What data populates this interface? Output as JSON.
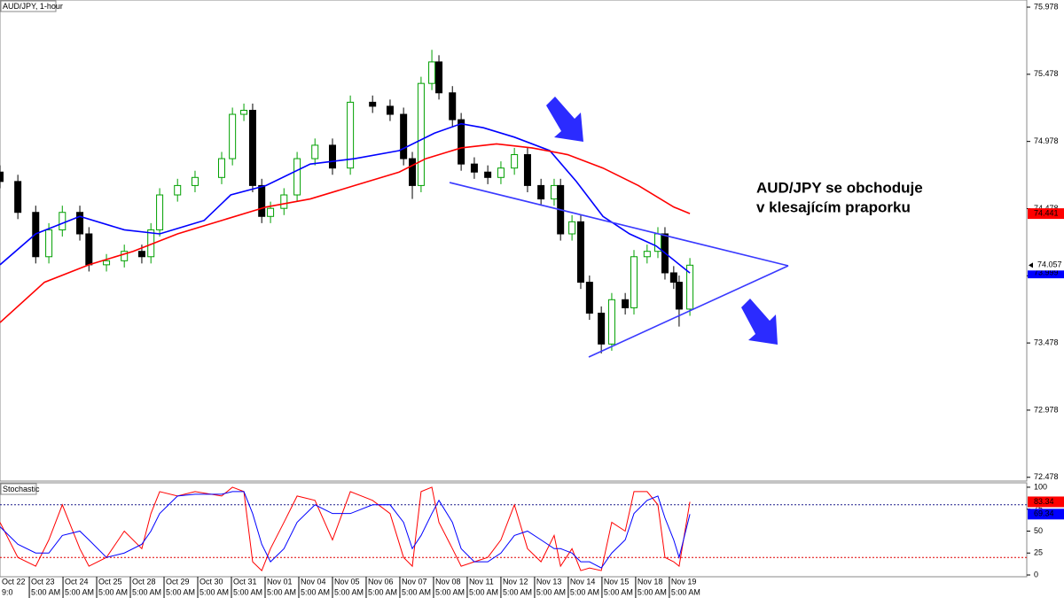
{
  "chart_data": [
    {
      "type": "candlestick",
      "title": "AUD/JPY, 1-hour",
      "x": [
        -0.32,
        0.21,
        0.74,
        1.13,
        1.53,
        2.05,
        2.32,
        2.84,
        3.37,
        3.89,
        4.16,
        4.42,
        4.95,
        5.47,
        6.26,
        6.58,
        6.92,
        7.18,
        7.45,
        7.71,
        8.11,
        8.5,
        9.03,
        9.55,
        10.08,
        10.74,
        11.26,
        11.66,
        11.92,
        12.18,
        12.5,
        12.71,
        13.11,
        13.37,
        13.76,
        14.16,
        14.55,
        14.95,
        15.34,
        15.74,
        16.13,
        16.32,
        16.66,
        16.92,
        17.18,
        17.53,
        17.84,
        18.24,
        18.5,
        18.89,
        19.21,
        19.42,
        19.68,
        19.84,
        20.16
      ],
      "open": [
        74.75,
        74.68,
        74.45,
        74.12,
        74.32,
        74.45,
        74.29,
        74.06,
        74.09,
        74.16,
        74.12,
        74.32,
        74.58,
        74.65,
        74.71,
        74.85,
        75.18,
        75.21,
        74.65,
        74.42,
        74.48,
        74.58,
        74.85,
        74.95,
        74.78,
        75.27,
        75.24,
        75.18,
        74.85,
        74.65,
        75.41,
        75.57,
        75.34,
        75.14,
        74.81,
        74.75,
        74.71,
        74.78,
        74.88,
        74.65,
        74.55,
        74.65,
        74.29,
        74.38,
        73.93,
        73.7,
        73.47,
        73.8,
        73.74,
        74.12,
        74.16,
        74.29,
        74.0,
        73.93,
        73.73
      ],
      "high": [
        74.8,
        74.73,
        74.5,
        74.37,
        74.5,
        74.5,
        74.34,
        74.14,
        74.21,
        74.21,
        74.37,
        74.63,
        74.7,
        74.76,
        74.9,
        75.23,
        75.26,
        75.26,
        74.7,
        74.53,
        74.63,
        74.9,
        75.0,
        75.0,
        75.32,
        75.32,
        75.29,
        75.23,
        74.9,
        75.46,
        75.66,
        75.62,
        75.39,
        75.19,
        74.86,
        74.8,
        74.83,
        74.93,
        74.93,
        74.7,
        74.7,
        74.7,
        74.43,
        74.43,
        73.98,
        73.75,
        73.85,
        73.85,
        74.17,
        74.21,
        74.34,
        74.34,
        74.05,
        73.98,
        74.11
      ],
      "low": [
        74.63,
        74.4,
        74.07,
        74.07,
        74.27,
        74.24,
        74.01,
        74.01,
        74.04,
        74.07,
        74.07,
        74.27,
        74.53,
        74.6,
        74.66,
        74.8,
        75.13,
        74.6,
        74.37,
        74.37,
        74.43,
        74.53,
        74.8,
        74.73,
        74.73,
        75.19,
        75.13,
        74.8,
        74.55,
        74.6,
        75.36,
        75.29,
        75.09,
        74.76,
        74.7,
        74.66,
        74.66,
        74.73,
        74.6,
        74.5,
        74.5,
        74.24,
        74.24,
        73.88,
        73.65,
        73.4,
        73.42,
        73.69,
        73.69,
        74.07,
        74.11,
        73.95,
        73.88,
        73.6,
        73.68
      ],
      "close": [
        74.68,
        74.45,
        74.12,
        74.32,
        74.45,
        74.29,
        74.06,
        74.09,
        74.16,
        74.12,
        74.32,
        74.58,
        74.65,
        74.71,
        74.85,
        75.18,
        75.21,
        74.65,
        74.42,
        74.48,
        74.58,
        74.85,
        74.95,
        74.78,
        75.27,
        75.24,
        75.18,
        74.85,
        74.65,
        75.41,
        75.57,
        75.34,
        75.14,
        74.81,
        74.75,
        74.71,
        74.78,
        74.88,
        74.65,
        74.55,
        74.65,
        74.29,
        74.38,
        73.93,
        73.7,
        73.47,
        73.8,
        73.74,
        74.12,
        74.16,
        74.29,
        74.0,
        73.93,
        73.73,
        74.057
      ],
      "up_color": "#00a000",
      "down_color": "#000000",
      "lines": [
        {
          "color": "#0000ff",
          "x": [
            -0.32,
            0.74,
            2.05,
            3.37,
            4.42,
            5.74,
            6.53,
            7.58,
            8.89,
            10.21,
            11.53,
            12.58,
            13.37,
            14.03,
            14.95,
            16.0,
            16.79,
            17.58,
            18.37,
            19.16,
            20.16
          ],
          "values": [
            74.06,
            74.29,
            74.42,
            74.32,
            74.29,
            74.39,
            74.58,
            74.65,
            74.81,
            74.85,
            74.91,
            75.04,
            75.11,
            75.08,
            75.01,
            74.91,
            74.68,
            74.42,
            74.29,
            74.2,
            73.999
          ]
        },
        {
          "color": "#ff0000",
          "x": [
            -0.32,
            1.0,
            2.32,
            3.63,
            4.95,
            6.26,
            7.58,
            8.89,
            10.21,
            11.53,
            12.32,
            13.37,
            14.42,
            15.47,
            16.53,
            17.58,
            18.63,
            19.68,
            20.16
          ],
          "values": [
            73.63,
            73.93,
            74.06,
            74.16,
            74.29,
            74.39,
            74.49,
            74.55,
            74.65,
            74.75,
            74.85,
            74.93,
            74.96,
            74.93,
            74.88,
            74.78,
            74.65,
            74.49,
            74.441
          ]
        }
      ],
      "xlim": [
        -0.32,
        30.16
      ],
      "ylim": [
        72.45,
        76.031
      ],
      "yticks": [
        75.978,
        75.478,
        74.978,
        74.478,
        73.978,
        73.478,
        72.978,
        72.478
      ],
      "xticks": [
        {
          "value": -0.45,
          "label": "Oct 22",
          "time": "9:0"
        },
        {
          "value": 0.55,
          "label": "Oct 23",
          "time": "5:00 AM"
        },
        {
          "value": 1.55,
          "label": "Oct 24",
          "time": "5:00 AM"
        },
        {
          "value": 2.55,
          "label": "Oct 25",
          "time": "5:00 AM"
        },
        {
          "value": 3.55,
          "label": "Oct 28",
          "time": "5:00 AM"
        },
        {
          "value": 4.55,
          "label": "Oct 29",
          "time": "5:00 AM"
        },
        {
          "value": 5.55,
          "label": "Oct 30",
          "time": "5:00 AM"
        },
        {
          "value": 6.55,
          "label": "Oct 31",
          "time": "5:00 AM"
        },
        {
          "value": 7.55,
          "label": "Nov 01",
          "time": "5:00 AM"
        },
        {
          "value": 8.55,
          "label": "Nov 04",
          "time": "5:00 AM"
        },
        {
          "value": 9.55,
          "label": "Nov 05",
          "time": "5:00 AM"
        },
        {
          "value": 10.55,
          "label": "Nov 06",
          "time": "5:00 AM"
        },
        {
          "value": 11.55,
          "label": "Nov 07",
          "time": "5:00 AM"
        },
        {
          "value": 12.55,
          "label": "Nov 08",
          "time": "5:00 AM"
        },
        {
          "value": 13.55,
          "label": "Nov 11",
          "time": "5:00 AM"
        },
        {
          "value": 14.55,
          "label": "Nov 12",
          "time": "5:00 AM"
        },
        {
          "value": 15.55,
          "label": "Nov 13",
          "time": "5:00 AM"
        },
        {
          "value": 16.55,
          "label": "Nov 14",
          "time": "5:00 AM"
        },
        {
          "value": 17.55,
          "label": "Nov 15",
          "time": "5:00 AM"
        },
        {
          "value": 18.55,
          "label": "Nov 18",
          "time": "5:00 AM"
        },
        {
          "value": 19.55,
          "label": "Nov 19",
          "time": "5:00 AM"
        }
      ],
      "annotation": [
        "AUD/JPY se obchoduje",
        "v klesajícím praporku"
      ]
    },
    {
      "type": "line",
      "title": "Stochastic",
      "series": [
        {
          "color": "#ff0000",
          "values": [
            60,
            20,
            10,
            40,
            80,
            30,
            10,
            20,
            50,
            30,
            70,
            95,
            90,
            95,
            90,
            100,
            95,
            15,
            5,
            30,
            60,
            90,
            85,
            40,
            95,
            85,
            70,
            20,
            10,
            95,
            100,
            60,
            30,
            10,
            15,
            20,
            40,
            80,
            30,
            15,
            45,
            10,
            30,
            5,
            8,
            5,
            60,
            50,
            95,
            95,
            80,
            20,
            15,
            10,
            83.34
          ]
        },
        {
          "color": "#0000ff",
          "values": [
            55,
            35,
            25,
            25,
            45,
            50,
            40,
            20,
            25,
            35,
            50,
            70,
            90,
            92,
            92,
            95,
            95,
            70,
            35,
            15,
            30,
            60,
            80,
            70,
            70,
            80,
            80,
            60,
            30,
            45,
            70,
            85,
            60,
            30,
            15,
            15,
            25,
            45,
            50,
            40,
            30,
            30,
            25,
            15,
            15,
            8,
            25,
            40,
            70,
            85,
            90,
            65,
            40,
            20,
            69.34
          ]
        }
      ],
      "levels": [
        {
          "value": 80,
          "color": "#1a1a8c"
        },
        {
          "value": 20,
          "color": "#e00000"
        }
      ],
      "xlim": [
        -0.32,
        30.16
      ],
      "ylim": [
        -2,
        105
      ],
      "yticks": [
        100,
        75,
        50,
        25,
        0
      ]
    }
  ]
}
